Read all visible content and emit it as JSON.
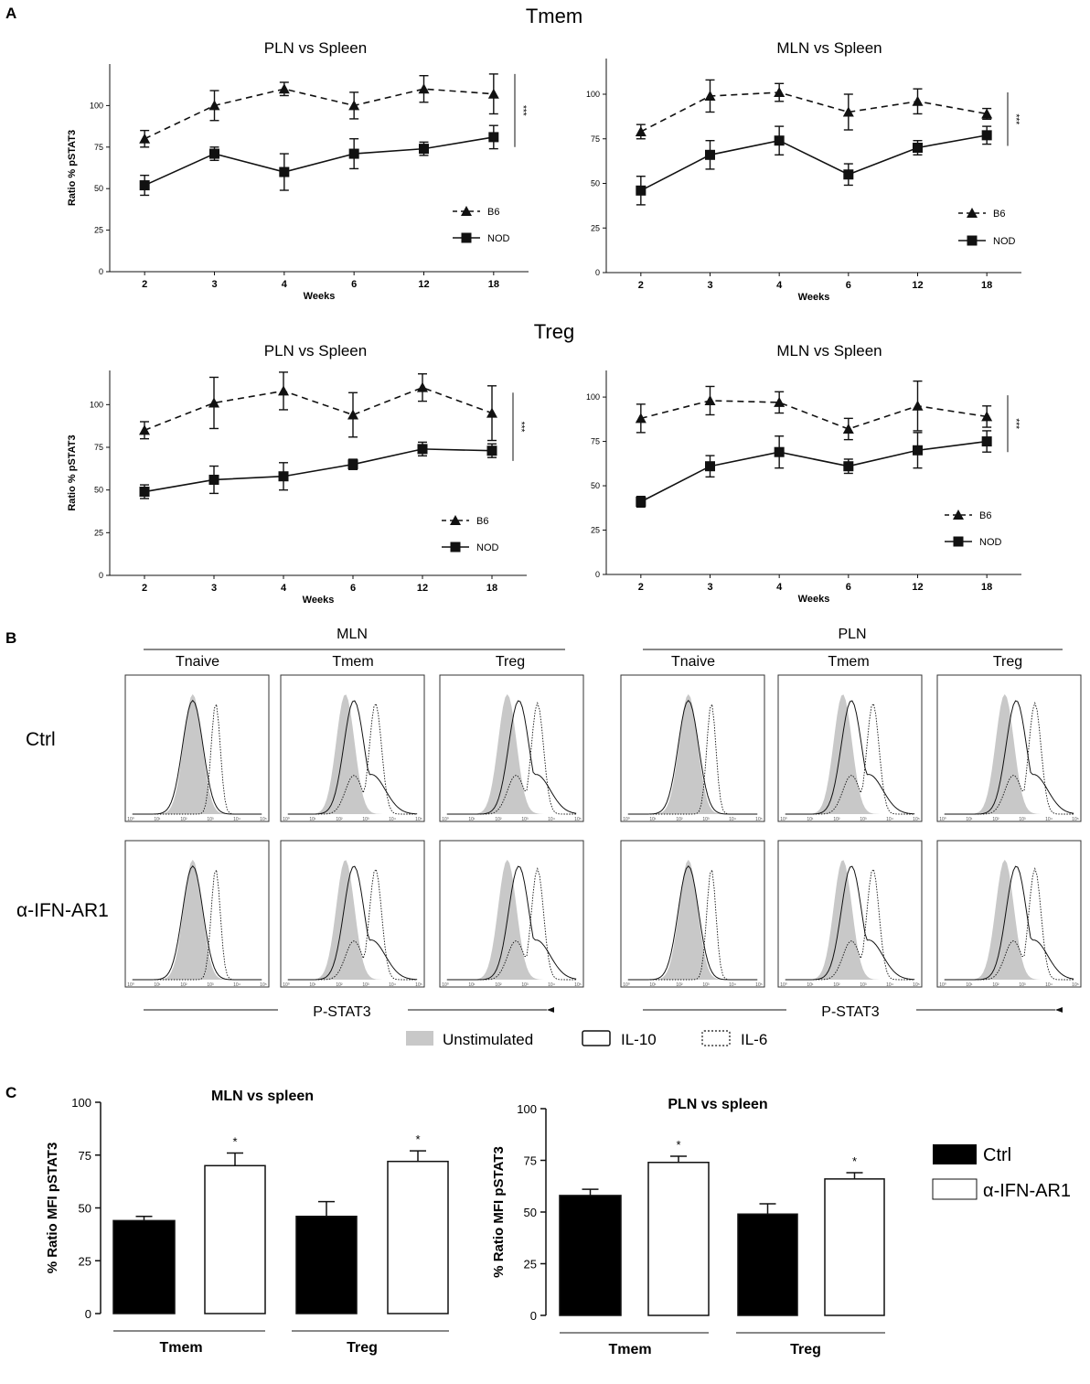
{
  "panel_letters": {
    "a": "A",
    "b": "B",
    "c": "C"
  },
  "colors": {
    "ink": "#111111",
    "unstimulated_fill": "#c8c8c8",
    "bar_ctrl": "#000000",
    "bar_ifn": "#ffffff"
  },
  "chart_data": [
    {
      "id": "tmem-pln",
      "type": "line",
      "group_title": "Tmem",
      "title": "PLN vs Spleen",
      "ylabel": "Ratio % pSTAT3",
      "xlabel": "Weeks",
      "categories": [
        "2",
        "3",
        "4",
        "6",
        "12",
        "18"
      ],
      "yticks": [
        "0",
        "25",
        "50",
        "75",
        "100"
      ],
      "ylim": [
        0,
        125
      ],
      "significance": "***",
      "series": [
        {
          "name": "B6",
          "style": "dashed",
          "marker": "triangle",
          "values": [
            80,
            100,
            110,
            100,
            110,
            107
          ],
          "errors": [
            5,
            9,
            4,
            8,
            8,
            12
          ]
        },
        {
          "name": "NOD",
          "style": "solid",
          "marker": "square",
          "values": [
            52,
            71,
            60,
            71,
            74,
            81
          ],
          "errors": [
            6,
            4,
            11,
            9,
            4,
            7
          ]
        }
      ]
    },
    {
      "id": "tmem-mln",
      "type": "line",
      "group_title": "",
      "title": "MLN vs Spleen",
      "ylabel": "",
      "xlabel": "Weeks",
      "categories": [
        "2",
        "3",
        "4",
        "6",
        "12",
        "18"
      ],
      "yticks": [
        "0",
        "25",
        "50",
        "75",
        "100"
      ],
      "ylim": [
        0,
        120
      ],
      "significance": "***",
      "series": [
        {
          "name": "B6",
          "style": "dashed",
          "marker": "triangle",
          "values": [
            79,
            99,
            101,
            90,
            96,
            89
          ],
          "errors": [
            4,
            9,
            5,
            10,
            7,
            3
          ]
        },
        {
          "name": "NOD",
          "style": "solid",
          "marker": "square",
          "values": [
            46,
            66,
            74,
            55,
            70,
            77
          ],
          "errors": [
            8,
            8,
            8,
            6,
            4,
            5
          ]
        }
      ]
    },
    {
      "id": "treg-pln",
      "type": "line",
      "group_title": "Treg",
      "title": "PLN vs Spleen",
      "ylabel": "Ratio % pSTAT3",
      "xlabel": "Weeks",
      "categories": [
        "2",
        "3",
        "4",
        "6",
        "12",
        "18"
      ],
      "yticks": [
        "0",
        "25",
        "50",
        "75",
        "100"
      ],
      "ylim": [
        0,
        120
      ],
      "significance": "***",
      "series": [
        {
          "name": "B6",
          "style": "dashed",
          "marker": "triangle",
          "values": [
            85,
            101,
            108,
            94,
            110,
            95
          ],
          "errors": [
            5,
            15,
            11,
            13,
            8,
            16
          ]
        },
        {
          "name": "NOD",
          "style": "solid",
          "marker": "square",
          "values": [
            49,
            56,
            58,
            65,
            74,
            73
          ],
          "errors": [
            4,
            8,
            8,
            3,
            4,
            4
          ]
        }
      ]
    },
    {
      "id": "treg-mln",
      "type": "line",
      "group_title": "",
      "title": "MLN vs Spleen",
      "ylabel": "",
      "xlabel": "Weeks",
      "categories": [
        "2",
        "3",
        "4",
        "6",
        "12",
        "18"
      ],
      "yticks": [
        "0",
        "25",
        "50",
        "75",
        "100"
      ],
      "ylim": [
        0,
        115
      ],
      "significance": "***",
      "series": [
        {
          "name": "B6",
          "style": "dashed",
          "marker": "triangle",
          "values": [
            88,
            98,
            97,
            82,
            95,
            89
          ],
          "errors": [
            8,
            8,
            6,
            6,
            14,
            6
          ]
        },
        {
          "name": "NOD",
          "style": "solid",
          "marker": "square",
          "values": [
            41,
            61,
            69,
            61,
            70,
            75
          ],
          "errors": [
            3,
            6,
            9,
            4,
            10,
            6
          ]
        }
      ]
    },
    {
      "id": "mfi-mln",
      "type": "bar",
      "title": "MLN vs spleen",
      "ylabel": "% Ratio MFI pSTAT3",
      "categories": [
        "Tmem",
        "Treg"
      ],
      "yticks": [
        "0",
        "25",
        "50",
        "75",
        "100"
      ],
      "ylim": [
        0,
        100
      ],
      "series": [
        {
          "name": "Ctrl",
          "values": [
            44,
            46
          ],
          "errors": [
            2,
            7
          ],
          "significance": [
            "",
            ""
          ]
        },
        {
          "name": "α-IFN-AR1",
          "values": [
            70,
            72
          ],
          "errors": [
            6,
            5
          ],
          "significance": [
            "*",
            "*"
          ]
        }
      ]
    },
    {
      "id": "mfi-pln",
      "type": "bar",
      "title": "PLN vs spleen",
      "ylabel": "% Ratio MFI pSTAT3",
      "categories": [
        "Tmem",
        "Treg"
      ],
      "yticks": [
        "0",
        "25",
        "50",
        "75",
        "100"
      ],
      "ylim": [
        0,
        100
      ],
      "series": [
        {
          "name": "Ctrl",
          "values": [
            58,
            49
          ],
          "errors": [
            3,
            5
          ],
          "significance": [
            "",
            ""
          ]
        },
        {
          "name": "α-IFN-AR1",
          "values": [
            74,
            66
          ],
          "errors": [
            3,
            3
          ],
          "significance": [
            "*",
            "*"
          ]
        }
      ]
    }
  ],
  "flow": {
    "groups": [
      {
        "label": "MLN",
        "columns": [
          "Tnaive",
          "Tmem",
          "Treg"
        ]
      },
      {
        "label": "PLN",
        "columns": [
          "Tnaive",
          "Tmem",
          "Treg"
        ]
      }
    ],
    "rows": [
      "Ctrl",
      "α-IFN-AR1"
    ],
    "xlabel": "P-STAT3",
    "xticks": [
      "10⁰",
      "10¹",
      "10²",
      "10³",
      "10⁴",
      "10⁵"
    ],
    "legend": {
      "unstimulated": "Unstimulated",
      "il10": "IL-10",
      "il6": "IL-6"
    }
  },
  "bar_legend": {
    "ctrl": "Ctrl",
    "ifn": "α-IFN-AR1"
  }
}
